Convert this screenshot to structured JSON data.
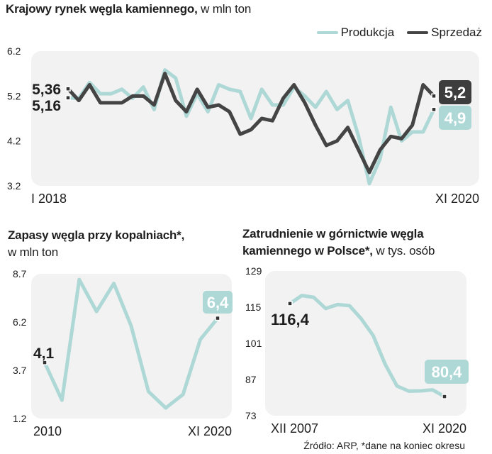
{
  "colors": {
    "produkcja": "#aed8d6",
    "sprzedaz": "#444444",
    "panel": "#f2f2f2",
    "text": "#1e1e1e"
  },
  "footer": {
    "source": "Źródło: ARP, *dane na koniec okresu"
  },
  "chart_data": [
    {
      "type": "line",
      "title": "Krajowy rynek węgla kamiennego,",
      "unit": "w mln ton",
      "legend": [
        "Produkcja",
        "Sprzedaż"
      ],
      "legend_position": "top-right",
      "ylim": [
        3.2,
        6.2
      ],
      "yticks": [
        "6.2",
        "5.2",
        "4.2",
        "3.2"
      ],
      "xticks": [
        "I 2018",
        "XI 2020"
      ],
      "start_labels": {
        "produkcja": "5,16",
        "sprzedaz": "5,36"
      },
      "end_labels": {
        "produkcja": "4,9",
        "sprzedaz": "5,2"
      },
      "series": [
        {
          "name": "Produkcja",
          "values": [
            5.16,
            5.15,
            5.5,
            5.25,
            5.25,
            5.35,
            5.15,
            5.4,
            4.9,
            5.78,
            5.6,
            4.75,
            5.25,
            4.85,
            5.45,
            5.35,
            5.3,
            4.7,
            5.35,
            5.0,
            5.0,
            5.4,
            5.2,
            4.95,
            5.3,
            4.9,
            5.1,
            4.3,
            3.25,
            3.8,
            4.95,
            4.2,
            4.4,
            4.4,
            4.9
          ]
        },
        {
          "name": "Sprzedaż",
          "values": [
            5.36,
            5.1,
            5.45,
            5.05,
            5.05,
            5.05,
            5.2,
            5.2,
            5.0,
            5.7,
            5.1,
            4.85,
            5.35,
            4.95,
            5.0,
            4.85,
            4.35,
            4.45,
            4.7,
            4.65,
            5.15,
            5.45,
            5.05,
            4.55,
            4.1,
            4.2,
            4.5,
            4.0,
            3.5,
            4.0,
            4.3,
            4.25,
            4.55,
            5.45,
            5.2
          ]
        }
      ]
    },
    {
      "type": "line",
      "title": "Zapasy węgla przy kopalniach*,",
      "unit": "w mln ton",
      "ylim": [
        1.2,
        8.7
      ],
      "yticks": [
        "8.7",
        "6.2",
        "3.7",
        "1.2"
      ],
      "xticks": [
        "2010",
        "XI 2020"
      ],
      "start_label": "4,1",
      "end_label": "6,4",
      "series": [
        {
          "name": "Zapasy",
          "values": [
            4.1,
            2.15,
            8.4,
            6.75,
            8.2,
            6.0,
            2.6,
            1.75,
            2.45,
            5.3,
            6.4
          ]
        }
      ]
    },
    {
      "type": "line",
      "title": "Zatrudnienie w górnictwie węgla kamiennego w Polsce*,",
      "unit": "w tys. osób",
      "ylim": [
        73,
        129
      ],
      "yticks": [
        "129",
        "115",
        "101",
        "87",
        "73"
      ],
      "xticks": [
        "XII 2007",
        "XI 2020"
      ],
      "start_label": "116,4",
      "end_label": "80,4",
      "series": [
        {
          "name": "Zatrudnienie",
          "values": [
            116.4,
            119.5,
            118.8,
            114.5,
            116.0,
            115.6,
            110.5,
            104.0,
            93.0,
            84.5,
            82.5,
            82.6,
            83.0,
            80.4
          ]
        }
      ]
    }
  ]
}
